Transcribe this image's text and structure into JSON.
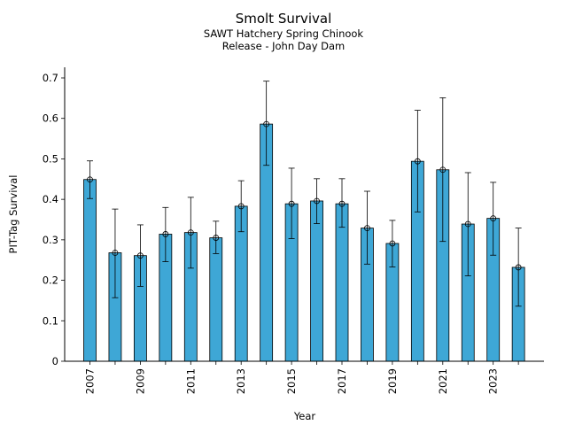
{
  "chart_data": {
    "type": "bar",
    "title": "Smolt Survival",
    "subtitle_lines": [
      "SAWT Hatchery Spring Chinook",
      "Release - John Day Dam"
    ],
    "xlabel": "Year",
    "ylabel": "PIT-Tag Survival",
    "categories": [
      "2007",
      "2008",
      "2009",
      "2010",
      "2011",
      "2012",
      "2013",
      "2014",
      "2015",
      "2016",
      "2017",
      "2018",
      "2019",
      "2020",
      "2021",
      "2022",
      "2023",
      "2024"
    ],
    "x_tick_labels": [
      "2007",
      "2009",
      "2011",
      "2013",
      "2015",
      "2017",
      "2019",
      "2021",
      "2023"
    ],
    "values": [
      0.449,
      0.268,
      0.261,
      0.314,
      0.318,
      0.305,
      0.383,
      0.586,
      0.389,
      0.396,
      0.389,
      0.329,
      0.291,
      0.494,
      0.473,
      0.339,
      0.353,
      0.232
    ],
    "error_low": [
      0.402,
      0.157,
      0.185,
      0.246,
      0.23,
      0.266,
      0.32,
      0.484,
      0.303,
      0.34,
      0.331,
      0.24,
      0.233,
      0.369,
      0.296,
      0.211,
      0.262,
      0.136
    ],
    "error_high": [
      0.495,
      0.376,
      0.337,
      0.38,
      0.405,
      0.346,
      0.446,
      0.692,
      0.477,
      0.451,
      0.451,
      0.42,
      0.348,
      0.62,
      0.651,
      0.466,
      0.442,
      0.329
    ],
    "ylim": [
      0,
      0.73
    ],
    "y_ticks": [
      0,
      0.1,
      0.2,
      0.3,
      0.4,
      0.5,
      0.6,
      0.7
    ],
    "y_tick_labels": [
      "0",
      "0.1",
      "0.2",
      "0.3",
      "0.4",
      "0.5",
      "0.6",
      "0.7"
    ],
    "grid": false,
    "colors": {
      "bar": "#3ea7d6",
      "bar_edge": "#000000",
      "error": "#000000"
    }
  }
}
